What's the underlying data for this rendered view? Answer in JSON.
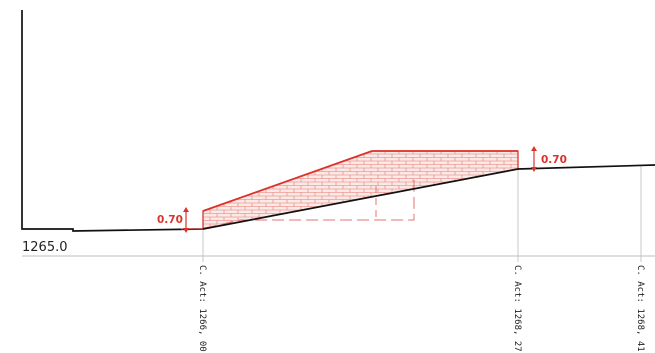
{
  "section": {
    "datum_label": "1265.0",
    "stations": [
      {
        "label": "C. Act: 1266, 00"
      },
      {
        "label": "C. Act: 1268, 27"
      },
      {
        "label": "C. Act: 1268, 41"
      }
    ],
    "dimensions": [
      {
        "label": "0.70"
      },
      {
        "label": "0.70"
      }
    ]
  },
  "colors": {
    "terrain": "#111111",
    "fill": "#d9342b",
    "guide": "#c8c8c8"
  }
}
